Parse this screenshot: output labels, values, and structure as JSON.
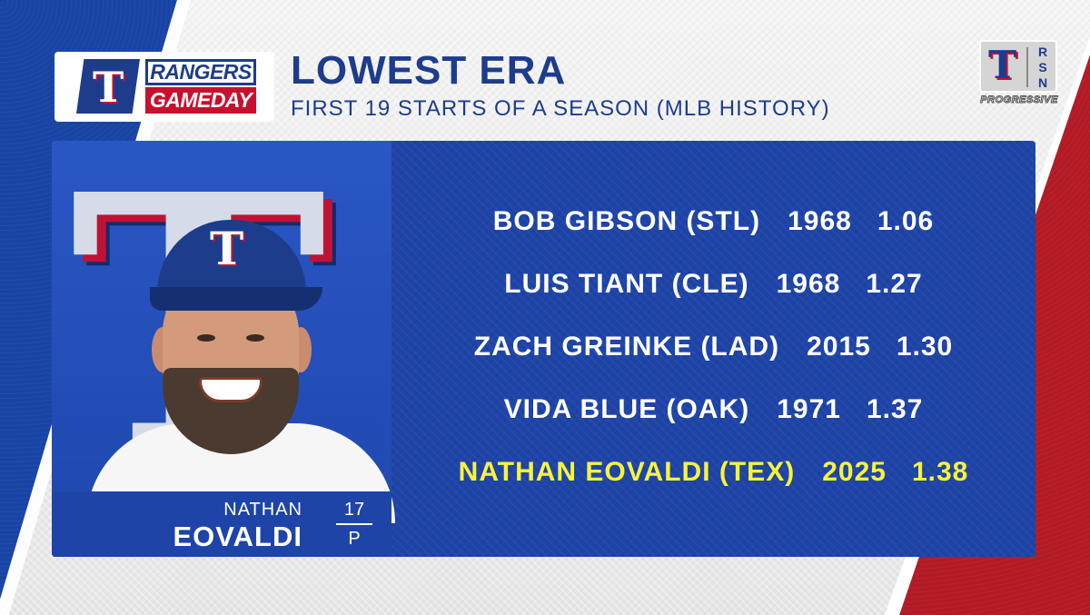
{
  "colors": {
    "primary_blue": "#1d3c8c",
    "panel_blue": "#1e44a8",
    "red": "#c8102e",
    "highlight_yellow": "#f8f33a"
  },
  "show_logo": {
    "line1": "RANGERS",
    "line2": "GAMEDAY",
    "mark": "T"
  },
  "heading": {
    "title": "LOWEST ERA",
    "subtitle": "FIRST 19 STARTS OF A SEASON (MLB HISTORY)"
  },
  "network_logo": {
    "mark": "T",
    "letters": [
      "R",
      "S",
      "N"
    ],
    "sponsor": "PROGRESSIVE"
  },
  "player": {
    "first_name": "NATHAN",
    "last_name": "EOVALDI",
    "number": "17",
    "position": "P",
    "cap_mark": "T",
    "bg_logo": "T"
  },
  "rankings": [
    {
      "name": "BOB GIBSON (STL)",
      "year": "1968",
      "era": "1.06",
      "highlight": false
    },
    {
      "name": "LUIS TIANT (CLE)",
      "year": "1968",
      "era": "1.27",
      "highlight": false
    },
    {
      "name": "ZACH GREINKE (LAD)",
      "year": "2015",
      "era": "1.30",
      "highlight": false
    },
    {
      "name": "VIDA BLUE (OAK)",
      "year": "1971",
      "era": "1.37",
      "highlight": false
    },
    {
      "name": "NATHAN EOVALDI (TEX)",
      "year": "2025",
      "era": "1.38",
      "highlight": true
    }
  ]
}
